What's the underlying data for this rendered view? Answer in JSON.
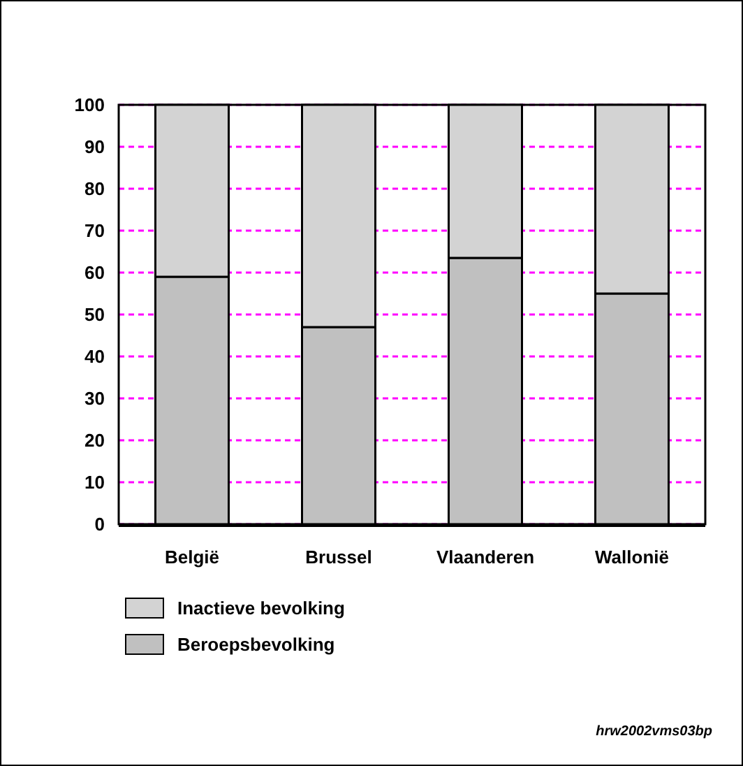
{
  "chart_data": {
    "type": "bar",
    "stacked": true,
    "categories": [
      "België",
      "Brussel",
      "Vlaanderen",
      "Wallonië"
    ],
    "series": [
      {
        "name": "Beroepsbevolking",
        "color": "#c0c0c0",
        "values": [
          59,
          47,
          63.5,
          55
        ]
      },
      {
        "name": "Inactieve bevolking",
        "color": "#d3d3d3",
        "values": [
          41,
          53,
          36.5,
          45
        ]
      }
    ],
    "ylim": [
      0,
      100
    ],
    "yticks": [
      0,
      10,
      20,
      30,
      40,
      50,
      60,
      70,
      80,
      90,
      100
    ],
    "grid": "y",
    "legend": "bottom left",
    "annotations": [
      "hrw2002vms03bp"
    ]
  }
}
